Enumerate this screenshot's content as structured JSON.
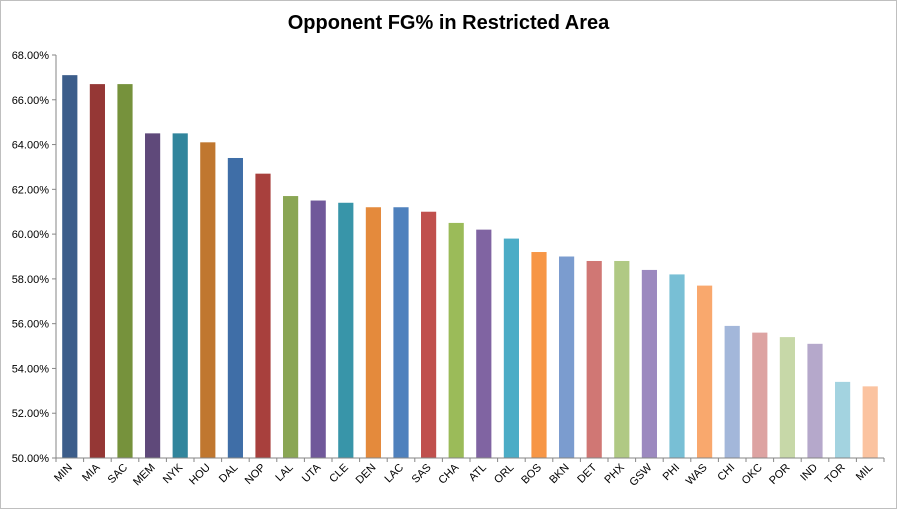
{
  "chart_data": {
    "type": "bar",
    "title": "Opponent FG% in Restricted Area",
    "xlabel": "",
    "ylabel": "",
    "ylim": [
      50,
      68
    ],
    "yticks": [
      "50.00%",
      "52.00%",
      "54.00%",
      "56.00%",
      "58.00%",
      "60.00%",
      "62.00%",
      "64.00%",
      "66.00%",
      "68.00%"
    ],
    "grid": false,
    "legend": "none",
    "categories": [
      "MIN",
      "MIA",
      "SAC",
      "MEM",
      "NYK",
      "HOU",
      "DAL",
      "NOP",
      "LAL",
      "UTA",
      "CLE",
      "DEN",
      "LAC",
      "SAS",
      "CHA",
      "ATL",
      "ORL",
      "BOS",
      "BKN",
      "DET",
      "PHX",
      "GSW",
      "PHI",
      "WAS",
      "CHI",
      "OKC",
      "POR",
      "IND",
      "TOR",
      "MIL"
    ],
    "values": [
      67.1,
      66.7,
      66.7,
      64.5,
      64.5,
      64.1,
      63.4,
      62.7,
      61.7,
      61.5,
      61.4,
      61.2,
      61.2,
      61.0,
      60.5,
      60.2,
      59.8,
      59.2,
      59.0,
      58.8,
      58.8,
      58.4,
      58.2,
      57.7,
      55.9,
      55.6,
      55.4,
      55.1,
      53.4,
      53.2
    ],
    "colors": [
      "#3c5d8a",
      "#953735",
      "#76923c",
      "#5f497a",
      "#31859c",
      "#c0772f",
      "#3f6ea7",
      "#a8403d",
      "#8aa654",
      "#70589a",
      "#3895a9",
      "#e48a3c",
      "#4f81bd",
      "#c0504d",
      "#9bbb59",
      "#8064a2",
      "#4bacc6",
      "#f79646",
      "#7b9ccf",
      "#d07774",
      "#b0c984",
      "#9c89bf",
      "#78bfd5",
      "#f9a86d",
      "#a3b7da",
      "#dda3a2",
      "#c7d8a8",
      "#b5a8cb",
      "#a3d3e0",
      "#fbc3a0"
    ]
  }
}
